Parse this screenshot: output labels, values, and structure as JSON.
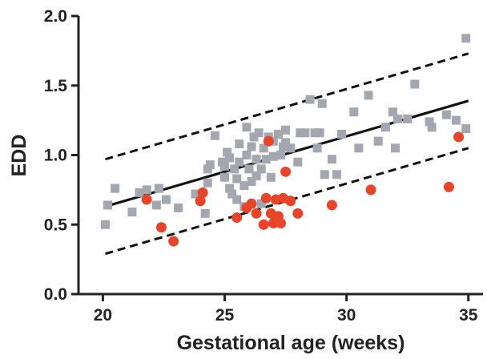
{
  "chart_data": {
    "type": "scatter",
    "title": "",
    "xlabel": "Gestational age (weeks)",
    "ylabel": "EDD",
    "xlim": [
      19,
      35.6
    ],
    "ylim": [
      0,
      2.0
    ],
    "x_ticks": [
      "20",
      "25",
      "30",
      "35"
    ],
    "y_ticks": [
      "0.0",
      "0.5",
      "1.0",
      "1.5",
      "2.0"
    ],
    "grid": false,
    "legend": "none",
    "series": [
      {
        "marker": "square",
        "color": "#a3a7b0",
        "points": [
          [
            20.1,
            0.5
          ],
          [
            20.2,
            0.64
          ],
          [
            20.5,
            0.76
          ],
          [
            21.2,
            0.59
          ],
          [
            21.5,
            0.73
          ],
          [
            21.8,
            0.75
          ],
          [
            22.3,
            0.76
          ],
          [
            22.2,
            0.64
          ],
          [
            22.6,
            0.68
          ],
          [
            23.1,
            0.62
          ],
          [
            23.8,
            0.72
          ],
          [
            24.3,
            0.9
          ],
          [
            24.3,
            0.8
          ],
          [
            24.2,
            0.58
          ],
          [
            24.4,
            0.93
          ],
          [
            24.6,
            1.14
          ],
          [
            24.9,
            0.95
          ],
          [
            25.0,
            0.84
          ],
          [
            25.0,
            0.92
          ],
          [
            25.1,
            1.02
          ],
          [
            25.2,
            0.98
          ],
          [
            25.2,
            0.76
          ],
          [
            25.3,
            0.72
          ],
          [
            25.4,
            0.9
          ],
          [
            25.5,
            0.83
          ],
          [
            25.5,
            0.68
          ],
          [
            25.6,
            0.95
          ],
          [
            25.6,
            1.08
          ],
          [
            25.8,
            0.63
          ],
          [
            25.8,
            0.78
          ],
          [
            25.9,
            1.0
          ],
          [
            25.9,
            1.2
          ],
          [
            26.0,
            0.9
          ],
          [
            26.1,
            0.81
          ],
          [
            26.1,
            1.06
          ],
          [
            26.2,
            1.13
          ],
          [
            26.3,
            0.97
          ],
          [
            26.3,
            0.85
          ],
          [
            26.4,
            1.16
          ],
          [
            26.5,
            0.9
          ],
          [
            26.5,
            0.65
          ],
          [
            26.6,
            1.05
          ],
          [
            26.7,
            0.97
          ],
          [
            26.8,
            1.13
          ],
          [
            26.9,
            0.84
          ],
          [
            27.0,
            0.99
          ],
          [
            27.0,
            1.1
          ],
          [
            27.2,
            1.15
          ],
          [
            27.3,
            1.0
          ],
          [
            27.4,
            1.06
          ],
          [
            27.5,
            1.09
          ],
          [
            27.5,
            1.18
          ],
          [
            27.7,
            1.05
          ],
          [
            28.0,
            0.95
          ],
          [
            28.1,
            1.16
          ],
          [
            28.3,
            1.16
          ],
          [
            28.5,
            1.4
          ],
          [
            28.7,
            1.16
          ],
          [
            28.8,
            1.05
          ],
          [
            28.9,
            1.16
          ],
          [
            29.0,
            1.37
          ],
          [
            29.1,
            0.86
          ],
          [
            29.4,
            0.97
          ],
          [
            29.6,
            0.86
          ],
          [
            29.8,
            1.15
          ],
          [
            30.3,
            1.31
          ],
          [
            30.5,
            1.05
          ],
          [
            30.9,
            1.43
          ],
          [
            31.3,
            1.1
          ],
          [
            31.6,
            1.2
          ],
          [
            31.9,
            1.31
          ],
          [
            32.0,
            1.05
          ],
          [
            32.1,
            1.26
          ],
          [
            32.5,
            1.26
          ],
          [
            32.8,
            1.51
          ],
          [
            33.4,
            1.24
          ],
          [
            33.5,
            1.2
          ],
          [
            34.1,
            1.29
          ],
          [
            34.5,
            1.25
          ],
          [
            34.9,
            1.19
          ],
          [
            34.9,
            1.84
          ]
        ]
      },
      {
        "marker": "circle",
        "color": "#e8442a",
        "points": [
          [
            21.8,
            0.68
          ],
          [
            22.4,
            0.48
          ],
          [
            22.9,
            0.38
          ],
          [
            24.0,
            0.67
          ],
          [
            24.1,
            0.73
          ],
          [
            25.5,
            0.55
          ],
          [
            25.9,
            0.62
          ],
          [
            26.1,
            0.65
          ],
          [
            26.3,
            0.58
          ],
          [
            26.6,
            0.5
          ],
          [
            26.7,
            0.69
          ],
          [
            26.8,
            1.1
          ],
          [
            26.9,
            0.58
          ],
          [
            27.0,
            0.51
          ],
          [
            27.1,
            0.68
          ],
          [
            27.2,
            0.56
          ],
          [
            27.3,
            0.51
          ],
          [
            27.4,
            0.69
          ],
          [
            27.5,
            0.88
          ],
          [
            27.7,
            0.67
          ],
          [
            28.0,
            0.58
          ],
          [
            29.4,
            0.64
          ],
          [
            31.0,
            0.75
          ],
          [
            34.2,
            0.77
          ],
          [
            34.6,
            1.13
          ]
        ]
      }
    ],
    "lines": [
      {
        "style": "solid",
        "x": [
          20.1,
          35.0
        ],
        "y": [
          0.63,
          1.39
        ]
      },
      {
        "style": "dashed",
        "x": [
          20.1,
          35.0
        ],
        "y": [
          0.97,
          1.73
        ]
      },
      {
        "style": "dashed",
        "x": [
          20.1,
          35.0
        ],
        "y": [
          0.29,
          1.05
        ]
      }
    ]
  }
}
